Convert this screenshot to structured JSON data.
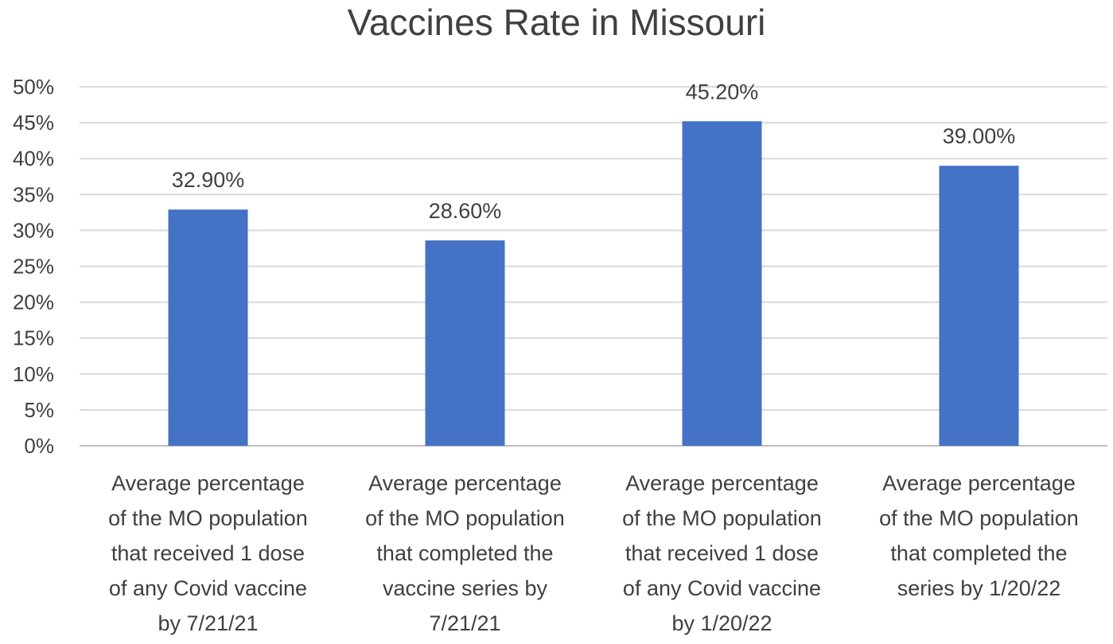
{
  "chart_data": {
    "type": "bar",
    "title": "Vaccines Rate in Missouri",
    "xlabel": "",
    "ylabel": "",
    "ylim": [
      0,
      50
    ],
    "yticks": [
      "0%",
      "5%",
      "10%",
      "15%",
      "20%",
      "25%",
      "30%",
      "35%",
      "40%",
      "45%",
      "50%"
    ],
    "grid": true,
    "legend": "none",
    "bar_color": "#4472C4",
    "categories": [
      [
        "Average percentage",
        "of the MO population",
        "that received 1 dose",
        "of any Covid vaccine",
        "by 7/21/21"
      ],
      [
        "Average percentage",
        "of the MO population",
        "that completed the",
        "vaccine series by",
        "7/21/21"
      ],
      [
        "Average percentage",
        "of the MO population",
        "that received 1 dose",
        "of any Covid vaccine",
        "by 1/20/22"
      ],
      [
        "Average percentage",
        "of the MO population",
        "that completed the",
        "series by 1/20/22"
      ]
    ],
    "values": [
      32.9,
      28.6,
      45.2,
      39.0
    ],
    "data_labels": [
      "32.90%",
      "28.60%",
      "45.20%",
      "39.00%"
    ]
  }
}
